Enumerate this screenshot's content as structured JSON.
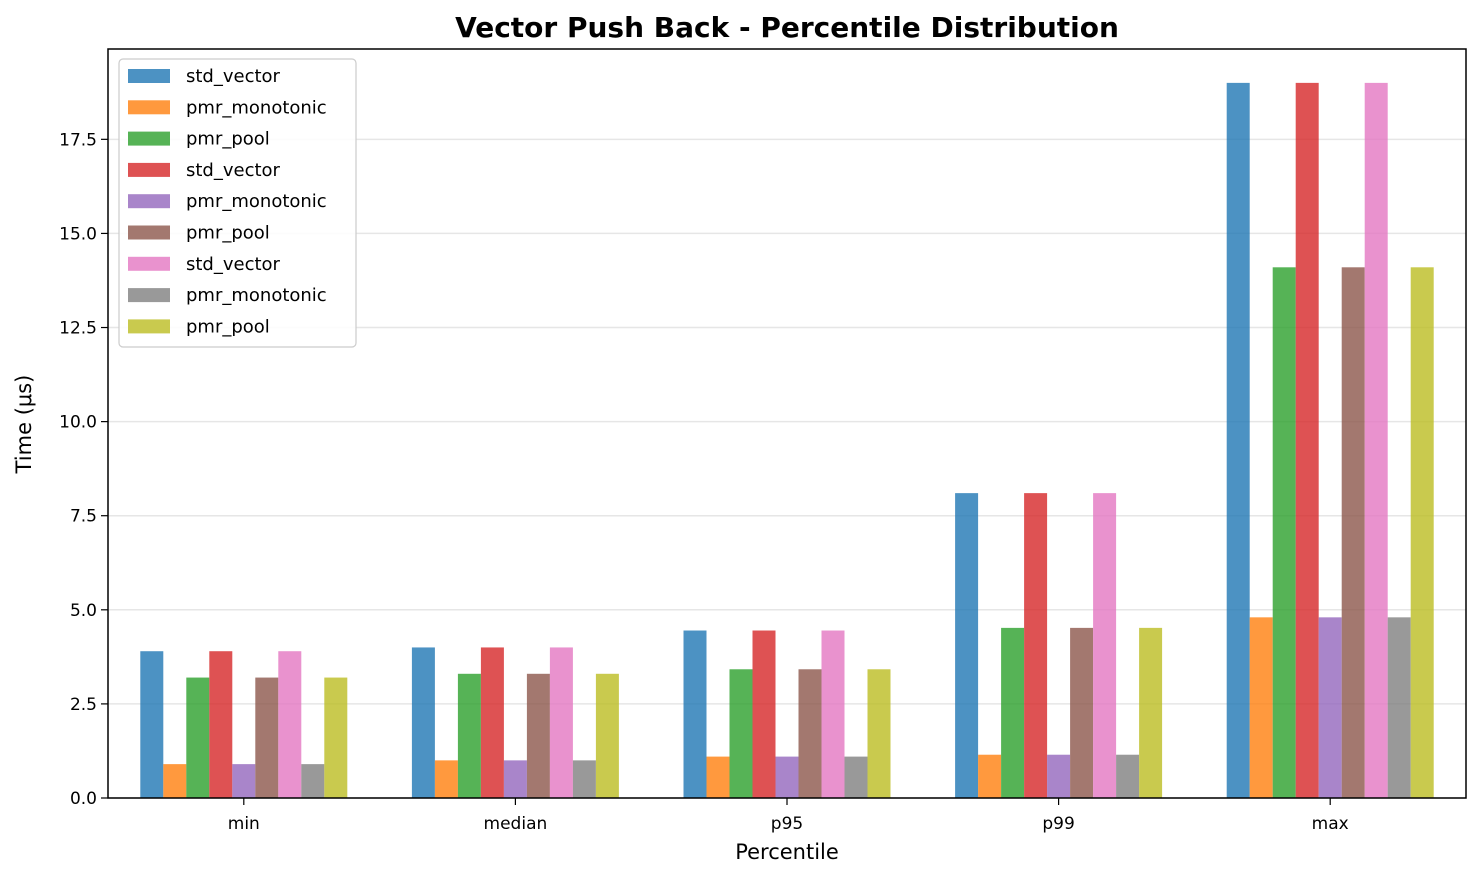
{
  "chart_data": {
    "type": "bar",
    "title": "Vector Push Back - Percentile Distribution",
    "xlabel": "Percentile",
    "ylabel": "Time (μs)",
    "categories": [
      "min",
      "median",
      "p95",
      "p99",
      "max"
    ],
    "ylim": [
      0,
      19.9
    ],
    "yticks": [
      0.0,
      2.5,
      5.0,
      7.5,
      10.0,
      12.5,
      15.0,
      17.5
    ],
    "ytick_labels": [
      "0.0",
      "2.5",
      "5.0",
      "7.5",
      "10.0",
      "12.5",
      "15.0",
      "17.5"
    ],
    "grid": "y",
    "legend_position": "top-left",
    "series": [
      {
        "name": "std_vector",
        "color": "#1f77b4",
        "values": [
          3.9,
          4.0,
          4.45,
          8.1,
          19.0
        ]
      },
      {
        "name": "pmr_monotonic",
        "color": "#ff7f0e",
        "values": [
          0.9,
          1.0,
          1.1,
          1.15,
          4.8
        ]
      },
      {
        "name": "pmr_pool",
        "color": "#2ca02c",
        "values": [
          3.2,
          3.3,
          3.42,
          4.52,
          14.1
        ]
      },
      {
        "name": "std_vector",
        "color": "#d62728",
        "values": [
          3.9,
          4.0,
          4.45,
          8.1,
          19.0
        ]
      },
      {
        "name": "pmr_monotonic",
        "color": "#9467bd",
        "values": [
          0.9,
          1.0,
          1.1,
          1.15,
          4.8
        ]
      },
      {
        "name": "pmr_pool",
        "color": "#8c564b",
        "values": [
          3.2,
          3.3,
          3.42,
          4.52,
          14.1
        ]
      },
      {
        "name": "std_vector",
        "color": "#e377c2",
        "values": [
          3.9,
          4.0,
          4.45,
          8.1,
          19.0
        ]
      },
      {
        "name": "pmr_monotonic",
        "color": "#7f7f7f",
        "values": [
          0.9,
          1.0,
          1.1,
          1.15,
          4.8
        ]
      },
      {
        "name": "pmr_pool",
        "color": "#bcbd22",
        "values": [
          3.2,
          3.3,
          3.42,
          4.52,
          14.1
        ]
      }
    ]
  }
}
